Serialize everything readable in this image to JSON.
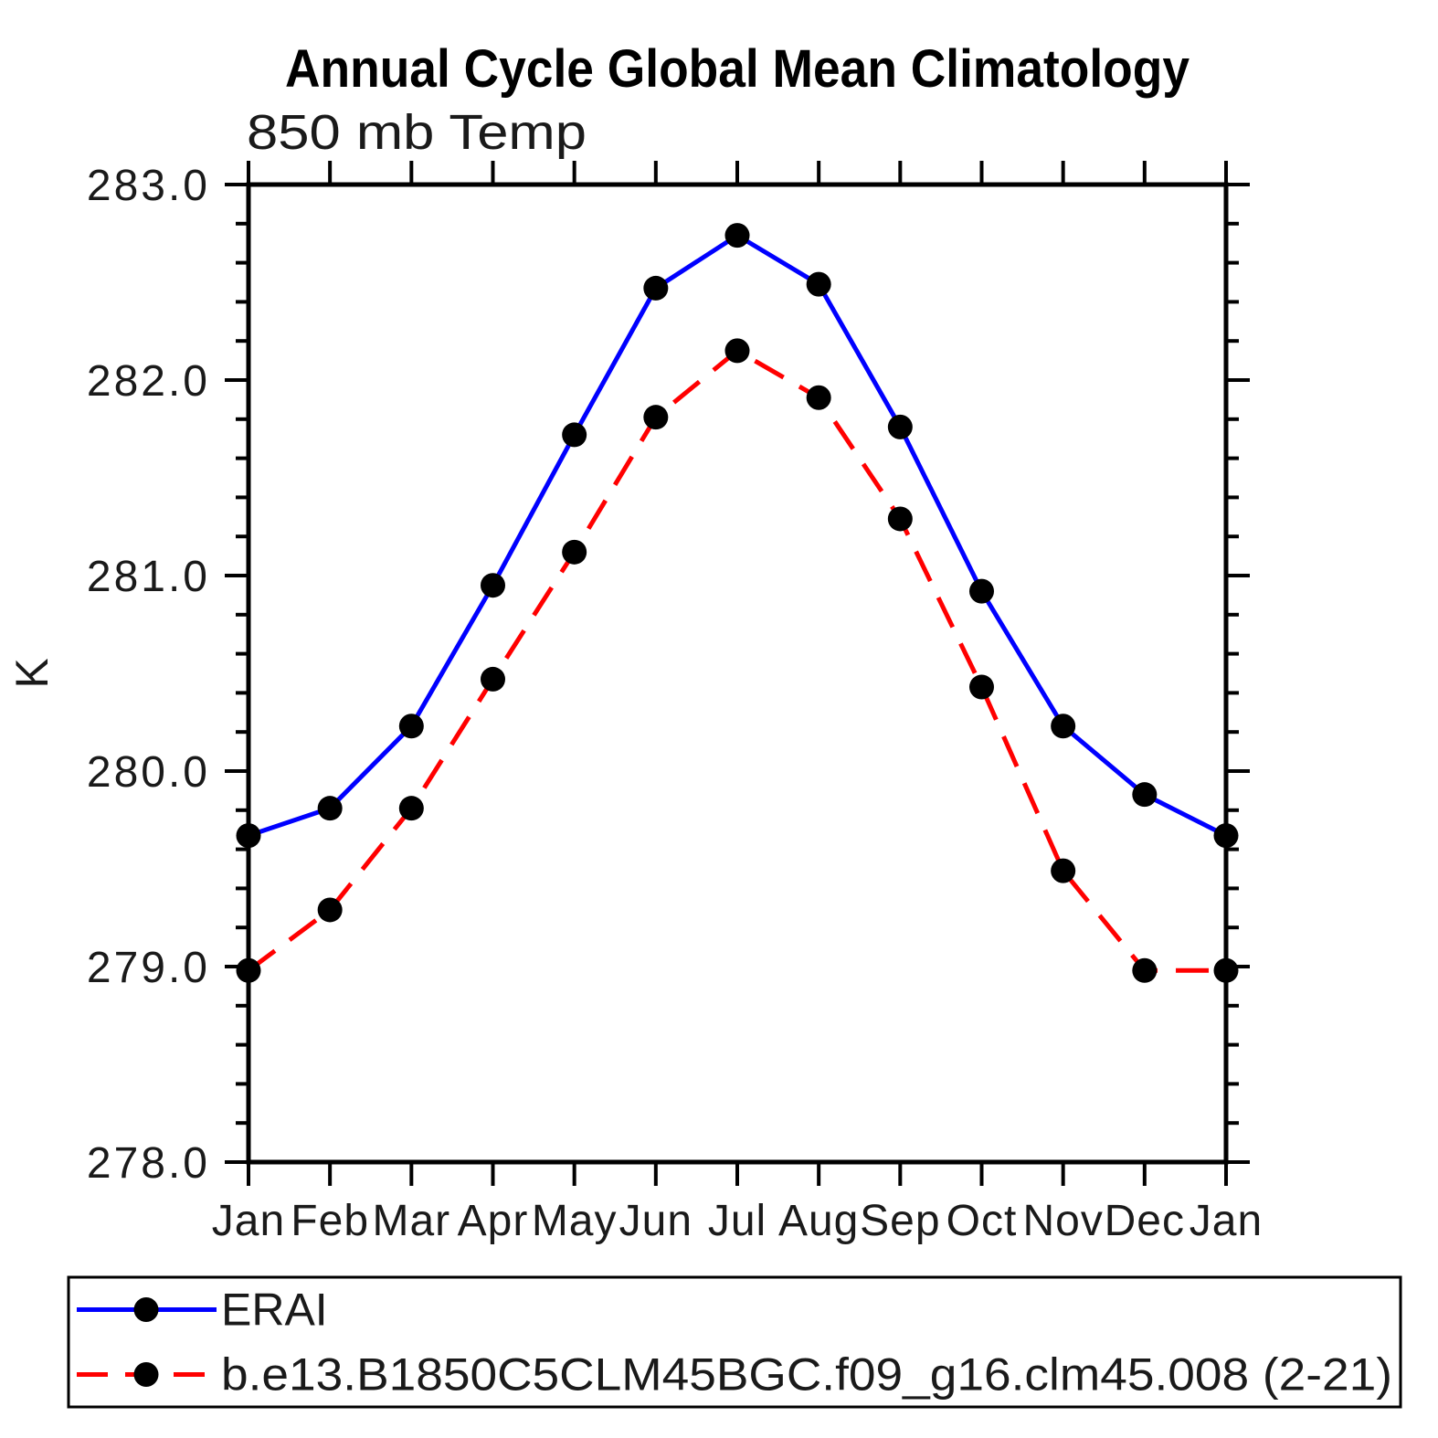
{
  "chart_data": {
    "type": "line",
    "title": "Annual Cycle Global Mean Climatology",
    "subtitle": "850 mb Temp",
    "xlabel": "",
    "ylabel": "K",
    "ylim": [
      278.0,
      283.0
    ],
    "ytick_major_values": [
      283.0,
      282.0,
      281.0,
      280.0,
      279.0,
      278.0
    ],
    "ytick_major_labels": [
      "283.0",
      "282.0",
      "281.0",
      "280.0",
      "279.0",
      "278.0"
    ],
    "ytick_minor_step": 0.2,
    "grid": false,
    "frame": "box-with-outward-ticks",
    "legend_position": "bottom-left-box",
    "categories": [
      "Jan",
      "Feb",
      "Mar",
      "Apr",
      "May",
      "Jun",
      "Jul",
      "Aug",
      "Sep",
      "Oct",
      "Nov",
      "Dec",
      "Jan"
    ],
    "series": [
      {
        "name": "ERAI",
        "color": "#0000ff",
        "line_style": "solid",
        "marker": "filled-circle",
        "marker_color": "#000000",
        "values": [
          279.67,
          279.81,
          280.23,
          280.95,
          281.72,
          282.47,
          282.74,
          282.49,
          281.76,
          280.92,
          280.23,
          279.88,
          279.67
        ]
      },
      {
        "name": "b.e13.B1850C5CLM45BGC.f09_g16.clm45.008 (2-21)",
        "color": "#ff0000",
        "line_style": "dashed",
        "marker": "filled-circle",
        "marker_color": "#000000",
        "values": [
          278.98,
          279.29,
          279.81,
          280.47,
          281.12,
          281.81,
          282.15,
          281.91,
          281.29,
          280.43,
          279.49,
          278.98,
          278.98
        ]
      }
    ],
    "axis_color": "#000000"
  }
}
